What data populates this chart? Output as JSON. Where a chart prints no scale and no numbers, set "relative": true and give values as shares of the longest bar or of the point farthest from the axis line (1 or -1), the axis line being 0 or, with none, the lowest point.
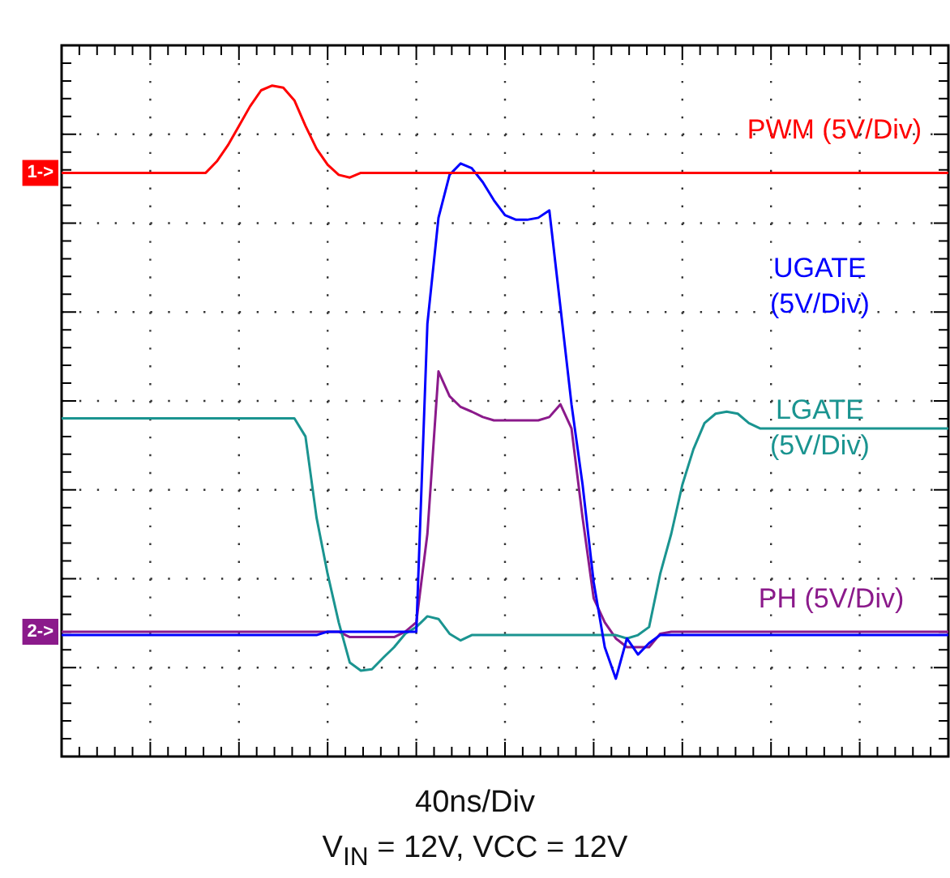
{
  "chart_data": {
    "type": "line",
    "relative": true,
    "grid": true,
    "marker": "none",
    "line_style": "solid",
    "legend": "right",
    "xlabel": "40ns/Div",
    "categories": [
      null,
      null,
      null,
      null,
      null,
      null,
      null,
      null,
      null,
      null,
      null,
      null,
      null,
      null,
      null,
      null,
      null,
      null,
      null,
      null,
      null,
      null,
      null,
      null,
      null,
      null,
      null,
      null,
      null,
      null,
      null,
      null,
      null,
      null,
      null,
      null,
      null,
      null,
      null,
      null,
      null,
      null,
      null,
      null,
      null,
      null,
      null,
      null,
      null,
      null,
      null,
      null,
      null,
      null,
      null,
      null,
      null,
      null,
      null,
      null,
      null,
      null,
      null,
      null,
      null,
      null,
      null,
      null,
      null,
      null,
      null,
      null,
      null,
      null,
      null,
      null,
      null,
      null,
      null,
      null,
      null
    ],
    "series": [
      {
        "name": "PWM (5V/Div)",
        "color": "#ff0000",
        "values": [
          0.87,
          0.87,
          0.87,
          0.87,
          0.87,
          0.87,
          0.87,
          0.87,
          0.87,
          0.87,
          0.87,
          0.87,
          0.87,
          0.87,
          0.887,
          0.911,
          0.94,
          0.969,
          0.993,
          1.0,
          0.997,
          0.978,
          0.94,
          0.906,
          0.882,
          0.867,
          0.863,
          0.87,
          0.87,
          0.87,
          0.87,
          0.87,
          0.87,
          0.87,
          0.87,
          0.87,
          0.87,
          0.87,
          0.87,
          0.87,
          0.87,
          0.87,
          0.87,
          0.87,
          0.87,
          0.87,
          0.87,
          0.87,
          0.87,
          0.87,
          0.87,
          0.87,
          0.87,
          0.87,
          0.87,
          0.87,
          0.87,
          0.87,
          0.87,
          0.87,
          0.87,
          0.87,
          0.87,
          0.87,
          0.87,
          0.87,
          0.87,
          0.87,
          0.87,
          0.87,
          0.87,
          0.87,
          0.87,
          0.87,
          0.87,
          0.87,
          0.87,
          0.87,
          0.87,
          0.87,
          0.87
        ]
      },
      {
        "name": "UGATE (5V/Div)",
        "color": "#0000ff",
        "values": [
          0.181,
          0.181,
          0.181,
          0.181,
          0.181,
          0.181,
          0.181,
          0.181,
          0.181,
          0.181,
          0.181,
          0.181,
          0.181,
          0.181,
          0.181,
          0.181,
          0.181,
          0.181,
          0.181,
          0.181,
          0.181,
          0.181,
          0.181,
          0.181,
          0.186,
          0.186,
          0.186,
          0.186,
          0.186,
          0.186,
          0.186,
          0.186,
          0.186,
          0.645,
          0.803,
          0.867,
          0.884,
          0.877,
          0.856,
          0.829,
          0.807,
          0.8,
          0.8,
          0.803,
          0.814,
          0.67,
          0.525,
          0.405,
          0.26,
          0.163,
          0.116,
          0.176,
          0.152,
          0.169,
          0.181,
          0.181,
          0.181,
          0.181,
          0.181,
          0.181,
          0.181,
          0.181,
          0.181,
          0.181,
          0.181,
          0.181,
          0.181,
          0.181,
          0.181,
          0.181,
          0.181,
          0.181,
          0.181,
          0.181,
          0.181,
          0.181,
          0.181,
          0.181,
          0.181,
          0.181,
          0.181
        ]
      },
      {
        "name": "LGATE (5V/Div)",
        "color": "#1a9490",
        "values": [
          0.504,
          0.504,
          0.504,
          0.504,
          0.504,
          0.504,
          0.504,
          0.504,
          0.504,
          0.504,
          0.504,
          0.504,
          0.504,
          0.504,
          0.504,
          0.504,
          0.504,
          0.504,
          0.504,
          0.504,
          0.504,
          0.504,
          0.477,
          0.356,
          0.272,
          0.2,
          0.14,
          0.128,
          0.13,
          0.147,
          0.163,
          0.183,
          0.193,
          0.209,
          0.205,
          0.183,
          0.173,
          0.181,
          0.181,
          0.181,
          0.181,
          0.181,
          0.181,
          0.181,
          0.181,
          0.181,
          0.181,
          0.181,
          0.181,
          0.181,
          0.181,
          0.176,
          0.181,
          0.193,
          0.272,
          0.332,
          0.405,
          0.458,
          0.497,
          0.511,
          0.514,
          0.511,
          0.497,
          0.489,
          0.489,
          0.489,
          0.489,
          0.489,
          0.489,
          0.489,
          0.489,
          0.489,
          0.489,
          0.489,
          0.489,
          0.489,
          0.489,
          0.489,
          0.489,
          0.489,
          0.489
        ]
      },
      {
        "name": "PH (5V/Div)",
        "color": "#8b1a8b",
        "values": [
          0.186,
          0.186,
          0.186,
          0.186,
          0.186,
          0.186,
          0.186,
          0.186,
          0.186,
          0.186,
          0.186,
          0.186,
          0.186,
          0.186,
          0.186,
          0.186,
          0.186,
          0.186,
          0.186,
          0.186,
          0.186,
          0.186,
          0.186,
          0.186,
          0.186,
          0.186,
          0.178,
          0.178,
          0.178,
          0.178,
          0.178,
          0.186,
          0.2,
          0.332,
          0.574,
          0.537,
          0.521,
          0.514,
          0.506,
          0.501,
          0.501,
          0.501,
          0.501,
          0.501,
          0.506,
          0.525,
          0.489,
          0.356,
          0.236,
          0.2,
          0.176,
          0.163,
          0.163,
          0.163,
          0.183,
          0.186,
          0.186,
          0.186,
          0.186,
          0.186,
          0.186,
          0.186,
          0.186,
          0.186,
          0.186,
          0.186,
          0.186,
          0.186,
          0.186,
          0.186,
          0.186,
          0.186,
          0.186,
          0.186,
          0.186,
          0.186,
          0.186,
          0.186,
          0.186,
          0.186,
          0.186
        ]
      }
    ],
    "annotations": [
      {
        "text": "1->",
        "y": 0.87
      },
      {
        "text": "2->",
        "y": 0.186
      },
      "V$_{IN}$ = 12V, VCC = 12V"
    ]
  }
}
